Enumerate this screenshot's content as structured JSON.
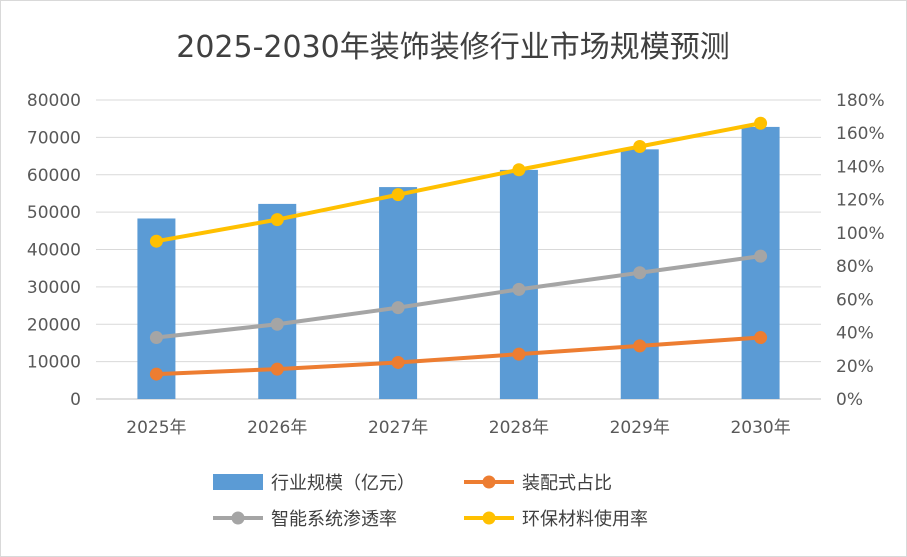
{
  "chart_data": {
    "type": "bar",
    "title": "2025-2030年装饰装修行业市场规模预测",
    "categories": [
      "2025年",
      "2026年",
      "2027年",
      "2028年",
      "2029年",
      "2030年"
    ],
    "y_left": {
      "ylim": [
        0,
        80000
      ],
      "ticks": [
        "80000",
        "70000",
        "60000",
        "50000",
        "40000",
        "30000",
        "20000",
        "10000",
        "0"
      ]
    },
    "y_right": {
      "ylim": [
        0,
        180
      ],
      "unit": "%",
      "ticks": [
        "180%",
        "160%",
        "140%",
        "120%",
        "100%",
        "80%",
        "60%",
        "40%",
        "20%",
        "0%"
      ]
    },
    "grid": true,
    "legend_position": "bottom",
    "series": [
      {
        "name": "行业规模（亿元）",
        "type": "bar",
        "axis": "left",
        "color": "#5b9bd5",
        "values": [
          48300,
          52200,
          56700,
          61300,
          66800,
          72800
        ]
      },
      {
        "name": "装配式占比",
        "type": "line",
        "axis": "right",
        "color": "#ed7d31",
        "values": [
          15,
          18,
          22,
          27,
          32,
          37
        ]
      },
      {
        "name": "智能系统渗透率",
        "type": "line",
        "axis": "right",
        "color": "#a5a5a5",
        "values": [
          37,
          45,
          55,
          66,
          76,
          86
        ]
      },
      {
        "name": "环保材料使用率",
        "type": "line",
        "axis": "right",
        "color": "#ffc000",
        "values": [
          95,
          108,
          123,
          138,
          152,
          166
        ]
      }
    ]
  }
}
